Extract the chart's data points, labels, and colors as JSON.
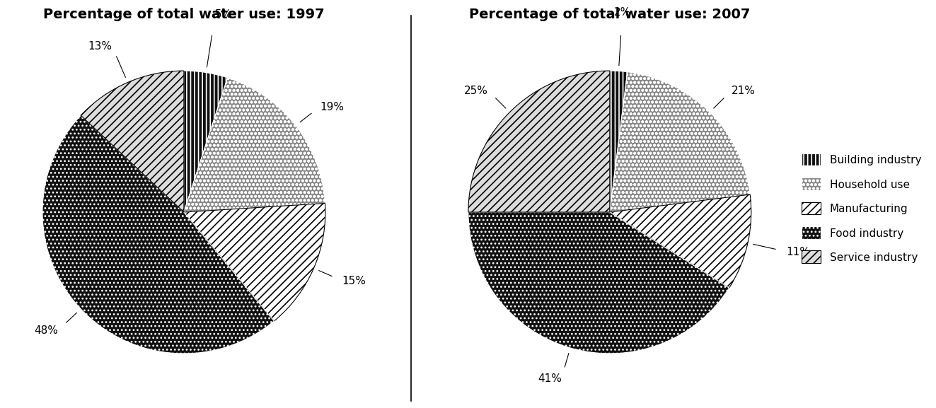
{
  "chart1": {
    "title": "Percentage of total water use: 1997",
    "values": [
      5,
      19,
      15,
      48,
      13
    ],
    "labels": [
      "5%",
      "19%",
      "15%",
      "48%",
      "13%"
    ],
    "categories": [
      "Building industry",
      "Household use",
      "Manufacturing",
      "Food industry",
      "Service industry"
    ]
  },
  "chart2": {
    "title": "Percentage of total water use: 2007",
    "values": [
      2,
      21,
      11,
      41,
      25
    ],
    "labels": [
      "2%",
      "21%",
      "11%",
      "41%",
      "25%"
    ],
    "categories": [
      "Building industry",
      "Household use",
      "Manufacturing",
      "Food industry",
      "Service industry"
    ]
  },
  "legend_labels": [
    "Building industry",
    "Household use",
    "Manufacturing",
    "Food industry",
    "Service industry"
  ],
  "face_colors": [
    "#111111",
    "#888888",
    "#ffffff",
    "#111111",
    "#dddddd"
  ],
  "hatch_patterns": [
    "|||",
    "ooo",
    "///",
    "...",
    "///"
  ],
  "edge_colors": [
    "white",
    "white",
    "black",
    "white",
    "black"
  ],
  "background_color": "#ffffff",
  "title_fontsize": 14,
  "label_fontsize": 11,
  "legend_fontsize": 11
}
